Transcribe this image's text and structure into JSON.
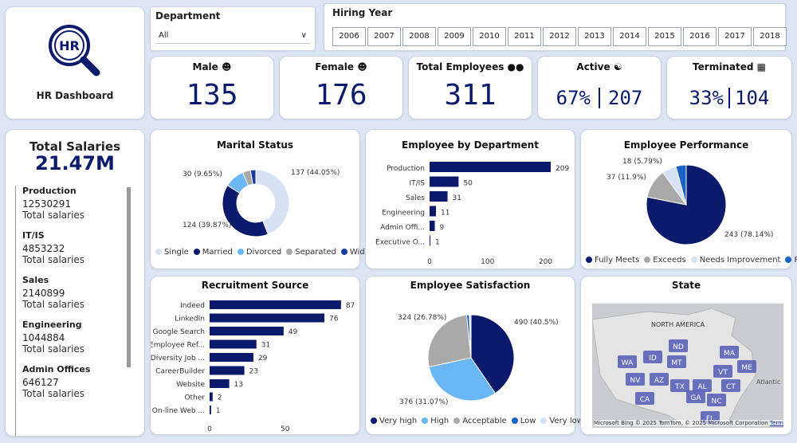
{
  "header": {
    "title": "HR Dashboard",
    "logo_text": "HR"
  },
  "department": {
    "label": "Department",
    "value": "All"
  },
  "hiring_year": {
    "label": "Hiring Year",
    "years": [
      "2006",
      "2007",
      "2008",
      "2009",
      "2010",
      "2011",
      "2012",
      "2013",
      "2014",
      "2015",
      "2016",
      "2017",
      "2018"
    ]
  },
  "kpis": {
    "male": {
      "label": "Male",
      "value": "135"
    },
    "female": {
      "label": "Female",
      "value": "176"
    },
    "total": {
      "label": "Total Employees",
      "value": "311"
    },
    "active": {
      "label": "Active",
      "pct": "67%",
      "count": "207"
    },
    "terminated": {
      "label": "Terminated",
      "pct": "33%",
      "count": "104"
    }
  },
  "salaries": {
    "title": "Total Salaries",
    "total": "21.47M",
    "sub": "Total salaries",
    "items": [
      {
        "name": "Production",
        "value": "12530291"
      },
      {
        "name": "IT/IS",
        "value": "4853232"
      },
      {
        "name": "Sales",
        "value": "2140899"
      },
      {
        "name": "Engineering",
        "value": "1044884"
      },
      {
        "name": "Admin Offices",
        "value": "646127"
      }
    ]
  },
  "colors": {
    "navy": "#0c1a6b",
    "blue": "#1f3a9e",
    "light": "#d6e2f3",
    "sky": "#6bb6f5",
    "gray": "#a9a9a9",
    "mid": "#1a63c4"
  },
  "chart_data": [
    {
      "id": "marital",
      "type": "pie",
      "title": "Marital Status",
      "slices": [
        {
          "name": "Single",
          "value": 137,
          "label": "137 (44.05%)"
        },
        {
          "name": "Married",
          "value": 124,
          "label": "124 (39.87%)"
        },
        {
          "name": "Divorced",
          "value": 30,
          "label": "30 (9.65%)"
        },
        {
          "name": "Separated",
          "value": 12,
          "label": ""
        },
        {
          "name": "Widowed",
          "value": 8,
          "label": ""
        }
      ]
    },
    {
      "id": "dept",
      "type": "bar",
      "title": "Employee by Department",
      "categories": [
        "Production",
        "IT/IS",
        "Sales",
        "Engineering",
        "Admin Offi...",
        "Executive O..."
      ],
      "values": [
        209,
        50,
        31,
        11,
        9,
        1
      ],
      "xticks": [
        "0",
        "100",
        "200"
      ],
      "xlim": [
        0,
        220
      ]
    },
    {
      "id": "perf",
      "type": "pie",
      "title": "Employee Performance",
      "slices": [
        {
          "name": "Fully Meets",
          "value": 243,
          "label": "243 (78.14%)"
        },
        {
          "name": "Exceeds",
          "value": 37,
          "label": "37 (11.9%)"
        },
        {
          "name": "Needs Improvement",
          "value": 18,
          "label": "18 (5.79%)"
        },
        {
          "name": "PIP",
          "value": 13,
          "label": ""
        }
      ]
    },
    {
      "id": "recruit",
      "type": "bar",
      "title": "Recruitment Source",
      "categories": [
        "Indeed",
        "LinkedIn",
        "Google Search",
        "Employee Ref...",
        "Diversity Job ...",
        "CareerBuilder",
        "Website",
        "Other",
        "On-line Web ..."
      ],
      "values": [
        87,
        76,
        49,
        31,
        29,
        23,
        13,
        2,
        1
      ],
      "xticks": [
        "0",
        "50"
      ],
      "xlim": [
        0,
        95
      ]
    },
    {
      "id": "satisf",
      "type": "pie",
      "title": "Employee Satisfaction",
      "slices": [
        {
          "name": "Very high",
          "value": 490,
          "label": "490 (40.5%)"
        },
        {
          "name": "High",
          "value": 376,
          "label": "376 (31.07%)"
        },
        {
          "name": "Acceptable",
          "value": 324,
          "label": "324 (26.78%)"
        },
        {
          "name": "Low",
          "value": 12,
          "label": ""
        },
        {
          "name": "Very low",
          "value": 8,
          "label": ""
        }
      ]
    }
  ],
  "map": {
    "title": "State",
    "region_label": "NORTH AMERICA",
    "place": "Atlantic",
    "states": [
      "WA",
      "ID",
      "ND",
      "MT",
      "MA",
      "ME",
      "NV",
      "AZ",
      "TX",
      "AL",
      "GA",
      "VT",
      "CT",
      "CA",
      "NC",
      "FL"
    ],
    "attribution": "© 2025 TomTom, © 2025 Microsoft Corporation",
    "terms": "Terms",
    "brand": "Microsoft Bing"
  }
}
